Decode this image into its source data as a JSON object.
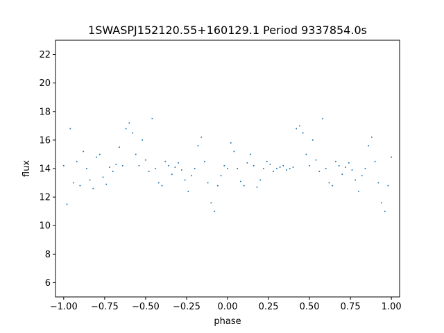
{
  "chart_data": {
    "type": "scatter",
    "title": "1SWASPJ152120.55+160129.1 Period 9337854.0s",
    "xlabel": "phase",
    "ylabel": "flux",
    "xlim": [
      -1.05,
      1.05
    ],
    "ylim": [
      5.0,
      23.0
    ],
    "x_ticks": [
      -1.0,
      -0.75,
      -0.5,
      -0.25,
      0.0,
      0.25,
      0.5,
      0.75,
      1.0
    ],
    "x_tick_labels": [
      "−1.00",
      "−0.75",
      "−0.50",
      "−0.25",
      "0.00",
      "0.25",
      "0.50",
      "0.75",
      "1.00"
    ],
    "y_ticks": [
      6,
      8,
      10,
      12,
      14,
      16,
      18,
      20,
      22
    ],
    "y_tick_labels": [
      "6",
      "8",
      "10",
      "12",
      "14",
      "16",
      "18",
      "20",
      "22"
    ],
    "grid": false,
    "point_color": "#1f77b4",
    "series": [
      {
        "description_note": "phase-folded light curve; points span phase -1 to 1 (pattern repeats with period 1)",
        "x": [
          -1.0,
          -0.98,
          -0.96,
          -0.94,
          -0.92,
          -0.9,
          -0.88,
          -0.86,
          -0.84,
          -0.82,
          -0.8,
          -0.78,
          -0.76,
          -0.74,
          -0.72,
          -0.7,
          -0.68,
          -0.66,
          -0.64,
          -0.62,
          -0.6,
          -0.58,
          -0.56,
          -0.54,
          -0.52,
          -0.5,
          -0.48,
          -0.46,
          -0.44,
          -0.42,
          -0.4,
          -0.38,
          -0.36,
          -0.34,
          -0.32,
          -0.3,
          -0.28,
          -0.26,
          -0.24,
          -0.22,
          -0.2,
          -0.18,
          -0.16,
          -0.14,
          -0.12,
          -0.1,
          -0.08,
          -0.06,
          -0.04,
          -0.02,
          0.0,
          0.02,
          0.04,
          0.06,
          0.08,
          0.1,
          0.12,
          0.14,
          0.16,
          0.18,
          0.2,
          0.22,
          0.24,
          0.26,
          0.28,
          0.3,
          0.32,
          0.34,
          0.36,
          0.38,
          0.4,
          0.42,
          0.44,
          0.46,
          0.48,
          0.5,
          0.52,
          0.54,
          0.56,
          0.58,
          0.6,
          0.62,
          0.64,
          0.66,
          0.68,
          0.7,
          0.72,
          0.74,
          0.76,
          0.78,
          0.8,
          0.82,
          0.84,
          0.86,
          0.88,
          0.9,
          0.92,
          0.94,
          0.96,
          0.98,
          1.0
        ],
        "y": [
          14.2,
          11.5,
          16.8,
          13.0,
          14.5,
          12.8,
          15.2,
          14.0,
          13.2,
          12.6,
          14.8,
          15.0,
          13.4,
          12.9,
          14.1,
          13.8,
          14.3,
          15.5,
          14.2,
          16.8,
          17.2,
          16.5,
          15.0,
          14.2,
          16.0,
          14.6,
          13.8,
          17.5,
          14.0,
          13.0,
          12.8,
          14.5,
          14.2,
          13.6,
          14.1,
          14.4,
          13.9,
          13.2,
          12.4,
          13.5,
          14.0,
          15.6,
          16.2,
          14.5,
          13.0,
          11.6,
          11.0,
          12.8,
          13.5,
          14.2,
          14.0,
          15.8,
          15.2,
          14.0,
          13.1,
          12.8,
          14.4,
          15.0,
          14.2,
          12.7,
          13.2,
          14.0,
          14.5,
          14.3,
          13.8,
          14.0,
          14.1,
          14.2,
          13.9,
          14.0,
          14.1,
          16.8,
          17.0,
          16.5,
          15.0,
          14.2,
          16.0,
          14.6,
          13.8,
          17.5,
          14.0,
          13.0,
          12.8,
          14.5,
          14.2,
          13.6,
          14.1,
          14.4,
          13.9,
          13.2,
          12.4,
          13.5,
          14.0,
          15.6,
          16.2,
          14.5,
          13.0,
          11.6,
          11.0,
          12.8,
          14.8
        ]
      }
    ]
  }
}
